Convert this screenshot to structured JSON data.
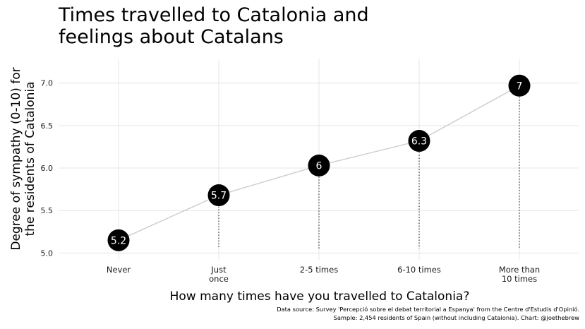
{
  "title_lines": [
    "Times travelled to Catalonia and",
    "feelings about Catalans"
  ],
  "caption_lines": [
    "Data source: Survey 'Percepció sobre el debat territorial a Espanya' from the Centre d'Estudis d'Opinió.",
    "Sample: 2,454 residents of Spain (without including Catalonia). Chart: @joethebrew"
  ],
  "chart_data": {
    "type": "line",
    "title": "Times travelled to Catalonia and feelings about Catalans",
    "xlabel": "How many times have you travelled to Catalonia?",
    "ylabel_lines": [
      "Degree of sympathy (0-10) for",
      "the residents of Catalonia"
    ],
    "categories": [
      [
        "Never"
      ],
      [
        "Just",
        "once"
      ],
      [
        "2-5 times"
      ],
      [
        "6-10 times"
      ],
      [
        "More than",
        "10 times"
      ]
    ],
    "values": [
      5.15,
      5.68,
      6.03,
      6.32,
      6.97
    ],
    "labels": [
      "5.2",
      "5.7",
      "6",
      "6.3",
      "7"
    ],
    "ylim": [
      4.92,
      7.28
    ],
    "yticks": [
      5.0,
      5.5,
      6.0,
      6.5,
      7.0
    ],
    "ytick_labels": [
      "5.0",
      "5.5",
      "6.0",
      "6.5",
      "7.0"
    ],
    "grid": true,
    "colors": {
      "point": "#000000",
      "line": "#cccccc",
      "grid": "#e5e5e5",
      "label": "#ffffff"
    }
  }
}
